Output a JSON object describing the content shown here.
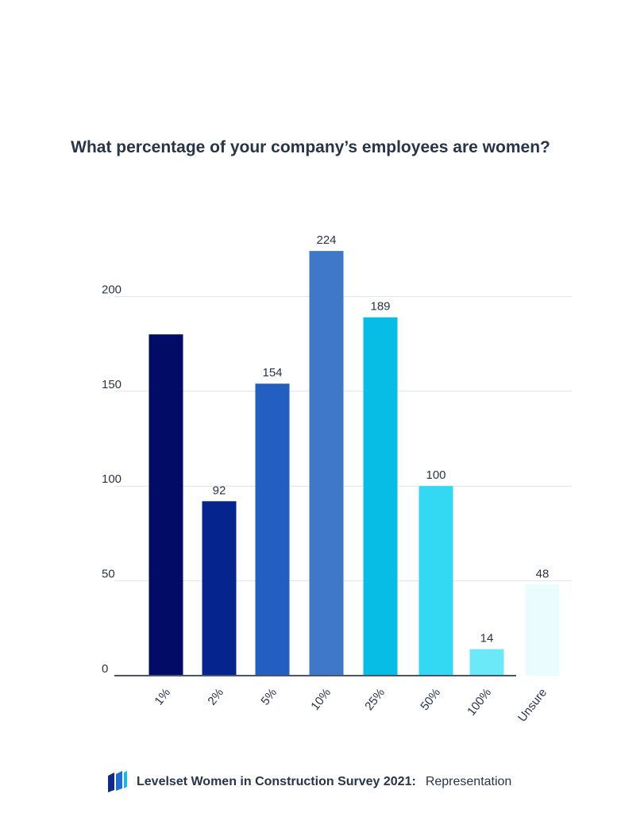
{
  "chart_data": {
    "type": "bar",
    "title": "What percentage of your company’s employees are women?",
    "categories": [
      "1%",
      "2%",
      "5%",
      "10%",
      "25%",
      "50%",
      "100%",
      "Unsure"
    ],
    "values": [
      180,
      92,
      154,
      224,
      189,
      100,
      14,
      48
    ],
    "data_labels": [
      "",
      "92",
      "154",
      "224",
      "189",
      "100",
      "14",
      "48"
    ],
    "colors": [
      "#020b66",
      "#05248e",
      "#225fc0",
      "#3f78c9",
      "#07bde6",
      "#33d8f2",
      "#6ce9f8",
      "#eafcfe"
    ],
    "yticks": [
      0,
      50,
      100,
      150,
      200
    ],
    "ylim": [
      0,
      240
    ],
    "grid": true,
    "xlabel": "",
    "ylabel": ""
  },
  "footer": {
    "brand": "Levelset Women in Construction Survey 2021:",
    "suffix": "Representation"
  }
}
